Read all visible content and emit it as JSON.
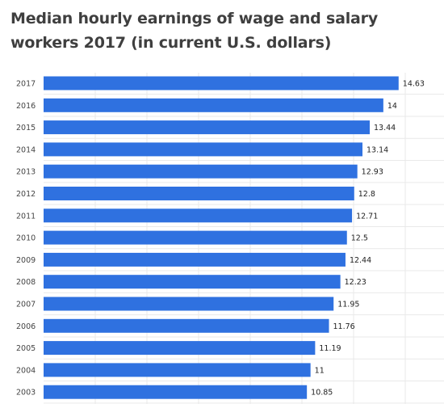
{
  "chart_data": {
    "type": "bar",
    "orientation": "horizontal",
    "title": "Median hourly earnings of wage and salary workers 2017 (in current U.S. dollars)",
    "categories": [
      "2017",
      "2016",
      "2015",
      "2014",
      "2013",
      "2012",
      "2011",
      "2010",
      "2009",
      "2008",
      "2007",
      "2006",
      "2005",
      "2004",
      "2003"
    ],
    "values": [
      14.63,
      14,
      13.44,
      13.14,
      12.93,
      12.8,
      12.71,
      12.5,
      12.44,
      12.23,
      11.95,
      11.76,
      11.19,
      11,
      10.85
    ],
    "data_labels": [
      "14.63",
      "14",
      "13.44",
      "13.14",
      "12.93",
      "12.8",
      "12.71",
      "12.5",
      "12.44",
      "12.23",
      "11.95",
      "11.76",
      "11.19",
      "11",
      "10.85"
    ],
    "xlim": [
      0,
      16.5
    ],
    "grid": true,
    "bar_color": "#2f71e0",
    "grid_color": "#e9e9e9"
  }
}
